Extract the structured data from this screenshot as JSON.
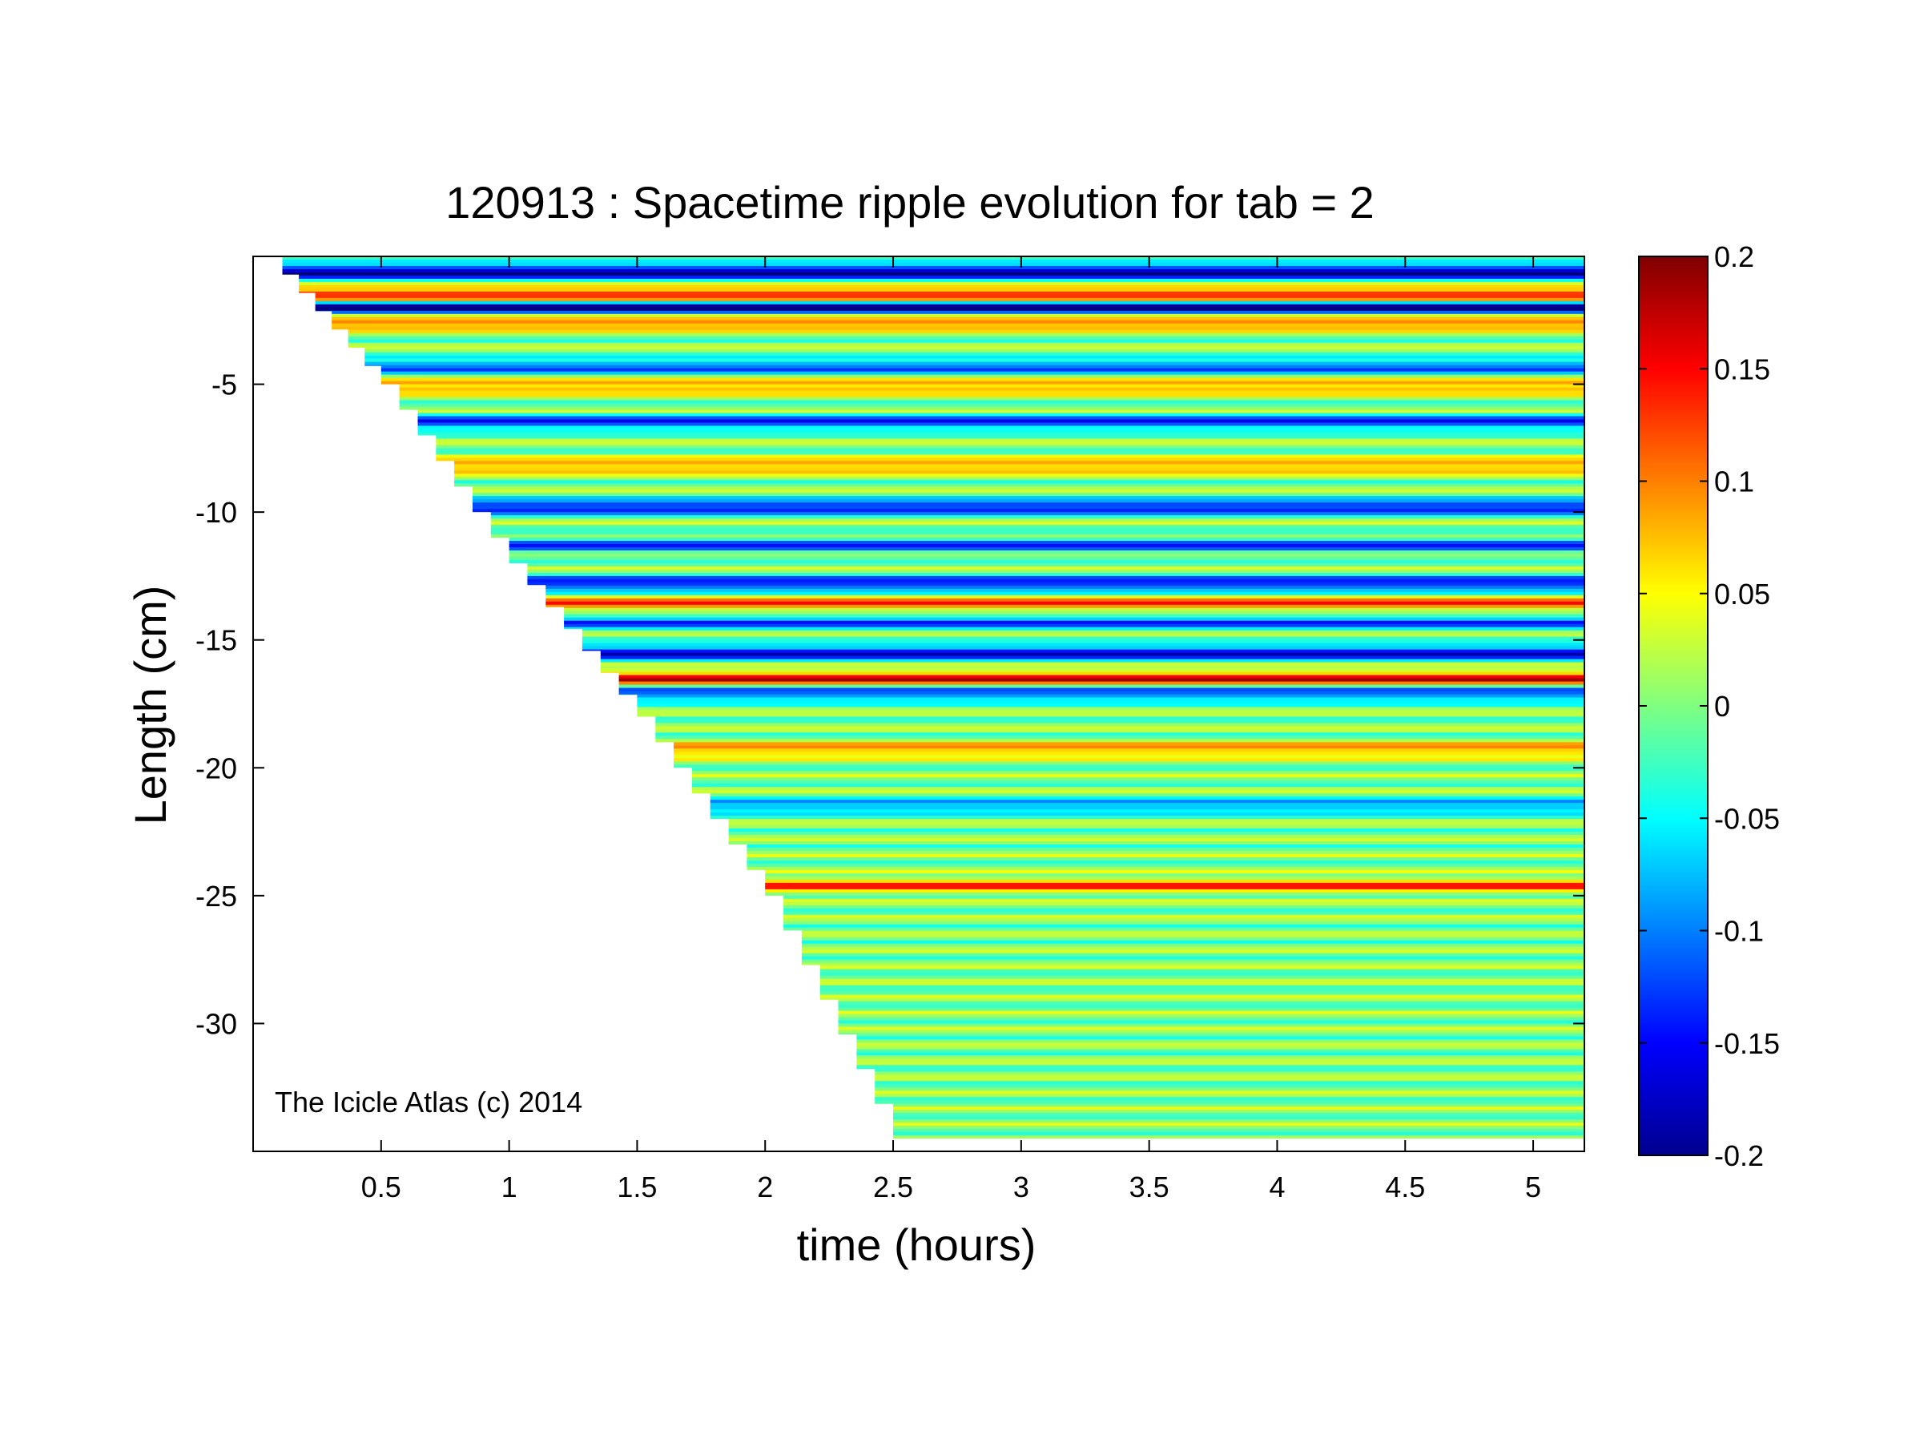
{
  "chart_data": {
    "type": "heatmap",
    "title": "120913 : Spacetime ripple evolution for tab = 2",
    "xlabel": "time (hours)",
    "ylabel": "Length (cm)",
    "xlim": [
      0,
      5.2
    ],
    "ylim": [
      -35,
      0
    ],
    "x_ticks": [
      0.5,
      1,
      1.5,
      2,
      2.5,
      3,
      3.5,
      4,
      4.5,
      5
    ],
    "x_tick_labels": [
      "0.5",
      "1",
      "1.5",
      "2",
      "2.5",
      "3",
      "3.5",
      "4",
      "4.5",
      "5"
    ],
    "y_ticks": [
      -5,
      -10,
      -15,
      -20,
      -25,
      -30
    ],
    "y_tick_labels": [
      "-5",
      "-10",
      "-15",
      "-20",
      "-25",
      "-30"
    ],
    "colorbar": {
      "range": [
        -0.2,
        0.2
      ],
      "ticks": [
        0.2,
        0.15,
        0.1,
        0.05,
        0,
        -0.05,
        -0.1,
        -0.15,
        -0.2
      ],
      "tick_labels": [
        "0.2",
        "0.15",
        "0.1",
        "0.05",
        "0",
        "-0.05",
        "-0.1",
        "-0.15",
        "-0.2"
      ],
      "colormap": "jet"
    },
    "data_region": {
      "description_of_edge": "data exists only for length above a front that starts near (0.05, 0) and reaches about (2.5, -34.5) before staying flat to t = 5.2",
      "front": [
        [
          0.05,
          0
        ],
        [
          0.5,
          -5
        ],
        [
          1.0,
          -12
        ],
        [
          1.5,
          -18
        ],
        [
          2.0,
          -25
        ],
        [
          2.5,
          -34.5
        ],
        [
          5.2,
          -34.5
        ]
      ]
    },
    "ripple_bands": [
      {
        "y": -0.6,
        "amplitude": -0.2
      },
      {
        "y": -1.5,
        "amplitude": 0.16
      },
      {
        "y": -2.0,
        "amplitude": -0.19
      },
      {
        "y": -2.6,
        "amplitude": 0.12
      },
      {
        "y": -4.3,
        "amplitude": -0.12
      },
      {
        "y": -5.1,
        "amplitude": 0.1
      },
      {
        "y": -6.5,
        "amplitude": -0.14
      },
      {
        "y": -8.2,
        "amplitude": 0.1
      },
      {
        "y": -9.8,
        "amplitude": -0.16
      },
      {
        "y": -11.3,
        "amplitude": -0.12
      },
      {
        "y": -12.8,
        "amplitude": -0.16
      },
      {
        "y": -13.6,
        "amplitude": 0.12
      },
      {
        "y": -14.3,
        "amplitude": -0.12
      },
      {
        "y": -15.5,
        "amplitude": -0.17
      },
      {
        "y": -16.5,
        "amplitude": 0.16
      },
      {
        "y": -17.1,
        "amplitude": -0.13
      },
      {
        "y": -19.3,
        "amplitude": 0.1
      },
      {
        "y": -21.5,
        "amplitude": -0.1
      },
      {
        "y": -24.6,
        "amplitude": 0.12
      }
    ]
  },
  "watermark": "The Icicle Atlas (c) 2014",
  "colors": {
    "axis": "#000000",
    "background": "#ffffff"
  }
}
